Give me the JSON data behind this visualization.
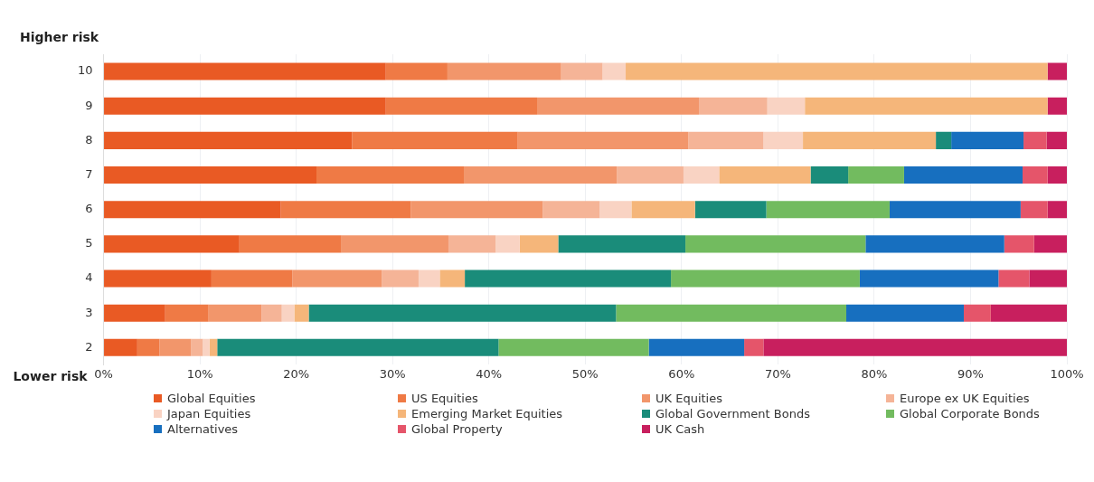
{
  "chart_data": {
    "type": "bar",
    "orientation": "horizontal",
    "stacked": true,
    "categories": [
      "10",
      "9",
      "8",
      "7",
      "6",
      "5",
      "4",
      "3",
      "2"
    ],
    "series": [
      {
        "name": "Global Equities",
        "color": "#e95a24",
        "values": [
          29.3,
          29.3,
          25.8,
          22.1,
          18.4,
          14.1,
          11.2,
          6.4,
          3.5
        ]
      },
      {
        "name": "US Equities",
        "color": "#ef7a45",
        "values": [
          6.4,
          15.7,
          17.2,
          15.3,
          13.5,
          10.6,
          8.4,
          4.5,
          2.3
        ]
      },
      {
        "name": "UK Equities",
        "color": "#f2966b",
        "values": [
          11.8,
          16.8,
          17.7,
          15.9,
          13.7,
          11.1,
          9.3,
          5.5,
          3.3
        ]
      },
      {
        "name": "Europe ex UK Equities",
        "color": "#f5b497",
        "values": [
          4.3,
          7.1,
          7.8,
          6.9,
          5.9,
          4.9,
          3.8,
          2.1,
          1.2
        ]
      },
      {
        "name": "Japan Equities",
        "color": "#f9d3c3",
        "values": [
          2.4,
          3.9,
          4.1,
          3.7,
          3.3,
          2.5,
          2.2,
          1.3,
          0.7
        ]
      },
      {
        "name": "Emerging  Market Equities",
        "color": "#f5b67a",
        "values": [
          43.8,
          25.2,
          13.8,
          9.5,
          6.6,
          4.0,
          2.6,
          1.5,
          0.8
        ]
      },
      {
        "name": "Global Government Bonds",
        "color": "#1a8c7a",
        "values": [
          0,
          0,
          1.6,
          3.9,
          7.4,
          13.2,
          21.4,
          31.9,
          29.2
        ]
      },
      {
        "name": "Global Corporate Bonds",
        "color": "#72bb5f",
        "values": [
          0,
          0,
          0,
          5.8,
          12.8,
          18.7,
          19.6,
          23.9,
          15.6
        ]
      },
      {
        "name": "Alternatives",
        "color": "#176fbf",
        "values": [
          0,
          0,
          7.5,
          12.3,
          13.6,
          14.4,
          14.4,
          12.2,
          9.9
        ]
      },
      {
        "name": "Global Property",
        "color": "#e5556a",
        "values": [
          0,
          0,
          2.4,
          2.6,
          2.8,
          3.1,
          3.2,
          2.8,
          2.0
        ]
      },
      {
        "name": "UK Cash",
        "color": "#c81f5e",
        "values": [
          2.0,
          2.0,
          2.1,
          2.0,
          2.0,
          3.4,
          3.9,
          7.9,
          31.5
        ]
      }
    ],
    "xlim": [
      0,
      100
    ],
    "xticks": [
      {
        "value": 0,
        "label": "0%"
      },
      {
        "value": 10,
        "label": "10%"
      },
      {
        "value": 20,
        "label": "20%"
      },
      {
        "value": 30,
        "label": "30%"
      },
      {
        "value": 40,
        "label": "40%"
      },
      {
        "value": 50,
        "label": "50%"
      },
      {
        "value": 60,
        "label": "60%"
      },
      {
        "value": 70,
        "label": "70%"
      },
      {
        "value": 80,
        "label": "80%"
      },
      {
        "value": 90,
        "label": "90%"
      },
      {
        "value": 100,
        "label": "100%"
      }
    ],
    "annotations": [
      "Higher risk",
      "Lower risk"
    ],
    "grid": "x",
    "legend": "bottom"
  }
}
